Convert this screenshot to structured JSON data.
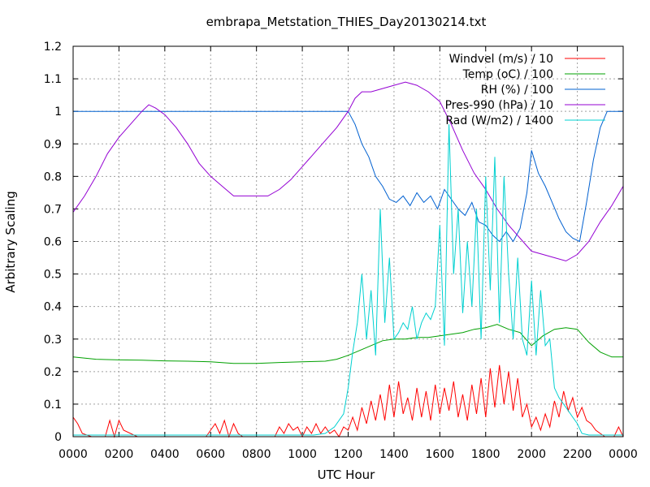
{
  "chart_data": {
    "type": "line",
    "title": "embrapa_Metstation_THIES_Day20130214.txt",
    "xlabel": "UTC Hour",
    "ylabel": "Arbitrary Scaling",
    "xlim": [
      0,
      24
    ],
    "ylim": [
      0,
      1.2
    ],
    "grid": true,
    "legend_position": "top-right",
    "x_ticks": [
      {
        "value": 0,
        "label": "0000"
      },
      {
        "value": 2,
        "label": "0200"
      },
      {
        "value": 4,
        "label": "0400"
      },
      {
        "value": 6,
        "label": "0600"
      },
      {
        "value": 8,
        "label": "0800"
      },
      {
        "value": 10,
        "label": "1000"
      },
      {
        "value": 12,
        "label": "1200"
      },
      {
        "value": 14,
        "label": "1400"
      },
      {
        "value": 16,
        "label": "1600"
      },
      {
        "value": 18,
        "label": "1800"
      },
      {
        "value": 20,
        "label": "2000"
      },
      {
        "value": 22,
        "label": "2200"
      },
      {
        "value": 24,
        "label": "0000"
      }
    ],
    "y_ticks": [
      {
        "value": 0,
        "label": "0"
      },
      {
        "value": 0.1,
        "label": "0.1"
      },
      {
        "value": 0.2,
        "label": "0.2"
      },
      {
        "value": 0.3,
        "label": "0.3"
      },
      {
        "value": 0.4,
        "label": "0.4"
      },
      {
        "value": 0.5,
        "label": "0.5"
      },
      {
        "value": 0.6,
        "label": "0.6"
      },
      {
        "value": 0.7,
        "label": "0.7"
      },
      {
        "value": 0.8,
        "label": "0.8"
      },
      {
        "value": 0.9,
        "label": "0.9"
      },
      {
        "value": 1.0,
        "label": "1"
      },
      {
        "value": 1.1,
        "label": "1.1"
      },
      {
        "value": 1.2,
        "label": "1.2"
      }
    ],
    "series": [
      {
        "name": "Windvel (m/s) / 10",
        "color": "#ff0000",
        "x": [
          0,
          0.2,
          0.4,
          0.8,
          1.4,
          1.6,
          1.8,
          2.0,
          2.2,
          2.8,
          3.4,
          4.0,
          4.6,
          5.2,
          5.8,
          6.2,
          6.4,
          6.6,
          6.8,
          7.0,
          7.2,
          7.4,
          7.8,
          8.4,
          8.8,
          9.0,
          9.2,
          9.4,
          9.6,
          9.8,
          10.0,
          10.2,
          10.4,
          10.6,
          10.8,
          11.0,
          11.2,
          11.4,
          11.6,
          11.8,
          12.0,
          12.2,
          12.4,
          12.6,
          12.8,
          13.0,
          13.2,
          13.4,
          13.6,
          13.8,
          14.0,
          14.2,
          14.4,
          14.6,
          14.8,
          15.0,
          15.2,
          15.4,
          15.6,
          15.8,
          16.0,
          16.2,
          16.4,
          16.6,
          16.8,
          17.0,
          17.2,
          17.4,
          17.6,
          17.8,
          18.0,
          18.2,
          18.4,
          18.6,
          18.8,
          19.0,
          19.2,
          19.4,
          19.6,
          19.8,
          20.0,
          20.2,
          20.4,
          20.6,
          20.8,
          21.0,
          21.2,
          21.4,
          21.6,
          21.8,
          22.0,
          22.2,
          22.4,
          22.6,
          22.8,
          23.0,
          23.2,
          23.4,
          23.6,
          23.8,
          24.0
        ],
        "values": [
          0.06,
          0.04,
          0.01,
          0.0,
          0.0,
          0.05,
          0.0,
          0.05,
          0.02,
          0.0,
          0.0,
          0.0,
          0.0,
          0.0,
          0.0,
          0.04,
          0.01,
          0.05,
          0.0,
          0.04,
          0.01,
          0.0,
          0.0,
          0.0,
          0.0,
          0.03,
          0.01,
          0.04,
          0.02,
          0.03,
          0.0,
          0.03,
          0.01,
          0.04,
          0.01,
          0.03,
          0.01,
          0.02,
          0.0,
          0.03,
          0.02,
          0.06,
          0.02,
          0.09,
          0.04,
          0.11,
          0.05,
          0.13,
          0.05,
          0.16,
          0.06,
          0.17,
          0.07,
          0.12,
          0.05,
          0.15,
          0.06,
          0.14,
          0.05,
          0.16,
          0.07,
          0.15,
          0.08,
          0.17,
          0.06,
          0.13,
          0.05,
          0.16,
          0.07,
          0.18,
          0.06,
          0.21,
          0.09,
          0.22,
          0.1,
          0.2,
          0.08,
          0.18,
          0.06,
          0.1,
          0.03,
          0.06,
          0.02,
          0.07,
          0.03,
          0.11,
          0.06,
          0.14,
          0.08,
          0.12,
          0.06,
          0.09,
          0.05,
          0.04,
          0.02,
          0.01,
          0.0,
          0.0,
          0.0,
          0.03,
          0.0
        ]
      },
      {
        "name": "Temp (oC) / 100",
        "color": "#00a000",
        "x": [
          0,
          1,
          2,
          3,
          4,
          5,
          6,
          7,
          8,
          9,
          10,
          11,
          11.5,
          12,
          12.5,
          13,
          13.5,
          14,
          14.5,
          15,
          15.5,
          16,
          16.5,
          17,
          17.5,
          18,
          18.5,
          19,
          19.5,
          20,
          20.5,
          21,
          21.5,
          22,
          22.5,
          23,
          23.5,
          24
        ],
        "values": [
          0.245,
          0.238,
          0.236,
          0.235,
          0.233,
          0.232,
          0.23,
          0.225,
          0.225,
          0.228,
          0.23,
          0.232,
          0.238,
          0.25,
          0.265,
          0.28,
          0.295,
          0.3,
          0.3,
          0.305,
          0.305,
          0.31,
          0.315,
          0.32,
          0.33,
          0.335,
          0.345,
          0.33,
          0.32,
          0.28,
          0.31,
          0.33,
          0.335,
          0.33,
          0.29,
          0.26,
          0.245,
          0.245
        ]
      },
      {
        "name": "RH (%) / 100",
        "color": "#0060d0",
        "x": [
          0,
          4,
          8,
          11,
          12.0,
          12.3,
          12.6,
          12.9,
          13.2,
          13.5,
          13.8,
          14.1,
          14.4,
          14.7,
          15.0,
          15.3,
          15.6,
          15.9,
          16.2,
          16.5,
          16.8,
          17.1,
          17.4,
          17.7,
          18.0,
          18.3,
          18.6,
          18.9,
          19.2,
          19.5,
          19.8,
          20.0,
          20.3,
          20.6,
          20.9,
          21.2,
          21.5,
          21.8,
          22.1,
          22.4,
          22.7,
          23.0,
          23.3,
          23.6,
          24.0
        ],
        "values": [
          1.0,
          1.0,
          1.0,
          1.0,
          1.0,
          0.96,
          0.9,
          0.86,
          0.8,
          0.77,
          0.73,
          0.72,
          0.74,
          0.71,
          0.75,
          0.72,
          0.74,
          0.7,
          0.76,
          0.73,
          0.7,
          0.68,
          0.72,
          0.66,
          0.65,
          0.62,
          0.6,
          0.63,
          0.6,
          0.64,
          0.75,
          0.88,
          0.81,
          0.77,
          0.72,
          0.67,
          0.63,
          0.61,
          0.6,
          0.72,
          0.85,
          0.95,
          1.0,
          1.0,
          1.0
        ]
      },
      {
        "name": "Pres-990 (hPa) / 10",
        "color": "#9400d3",
        "x": [
          0,
          0.5,
          1,
          1.5,
          2,
          2.5,
          3,
          3.3,
          3.6,
          4.0,
          4.5,
          5,
          5.5,
          6,
          6.5,
          7,
          7.5,
          8,
          8.5,
          9,
          9.5,
          10,
          10.5,
          11,
          11.5,
          12.0,
          12.3,
          12.6,
          13,
          13.5,
          14,
          14.5,
          15,
          15.5,
          16,
          16.5,
          17,
          17.5,
          18,
          18.5,
          19,
          19.5,
          20,
          20.5,
          21,
          21.5,
          22,
          22.5,
          23,
          23.5,
          24
        ],
        "values": [
          0.69,
          0.74,
          0.8,
          0.87,
          0.92,
          0.96,
          1.0,
          1.02,
          1.01,
          0.99,
          0.95,
          0.9,
          0.84,
          0.8,
          0.77,
          0.74,
          0.74,
          0.74,
          0.74,
          0.76,
          0.79,
          0.83,
          0.87,
          0.91,
          0.95,
          1.0,
          1.04,
          1.06,
          1.06,
          1.07,
          1.08,
          1.09,
          1.08,
          1.06,
          1.03,
          0.96,
          0.88,
          0.81,
          0.76,
          0.7,
          0.65,
          0.61,
          0.57,
          0.56,
          0.55,
          0.54,
          0.56,
          0.6,
          0.66,
          0.71,
          0.77
        ]
      },
      {
        "name": "Rad (W/m2) / 1400",
        "color": "#00d0d0",
        "x": [
          0,
          2,
          4,
          6,
          8,
          9.5,
          10.5,
          11.0,
          11.4,
          11.8,
          12.0,
          12.2,
          12.4,
          12.6,
          12.8,
          13.0,
          13.2,
          13.4,
          13.6,
          13.8,
          14.0,
          14.2,
          14.4,
          14.6,
          14.8,
          15.0,
          15.2,
          15.4,
          15.6,
          15.8,
          16.0,
          16.2,
          16.4,
          16.6,
          16.8,
          17.0,
          17.2,
          17.4,
          17.6,
          17.8,
          18.0,
          18.2,
          18.4,
          18.6,
          18.8,
          19.0,
          19.2,
          19.4,
          19.6,
          19.8,
          20.0,
          20.2,
          20.4,
          20.6,
          20.8,
          21.0,
          21.2,
          21.4,
          21.6,
          21.8,
          22.0,
          22.2,
          22.5,
          23,
          24
        ],
        "values": [
          0.005,
          0.005,
          0.005,
          0.005,
          0.005,
          0.005,
          0.005,
          0.01,
          0.03,
          0.07,
          0.15,
          0.26,
          0.35,
          0.5,
          0.3,
          0.45,
          0.25,
          0.7,
          0.35,
          0.55,
          0.3,
          0.32,
          0.35,
          0.33,
          0.4,
          0.3,
          0.35,
          0.38,
          0.36,
          0.4,
          0.65,
          0.28,
          0.96,
          0.5,
          0.7,
          0.38,
          0.6,
          0.4,
          0.7,
          0.3,
          0.8,
          0.45,
          0.86,
          0.35,
          0.8,
          0.5,
          0.3,
          0.55,
          0.3,
          0.25,
          0.48,
          0.25,
          0.45,
          0.28,
          0.3,
          0.15,
          0.12,
          0.1,
          0.08,
          0.06,
          0.04,
          0.01,
          0.005,
          0.005,
          0.005
        ]
      }
    ]
  }
}
